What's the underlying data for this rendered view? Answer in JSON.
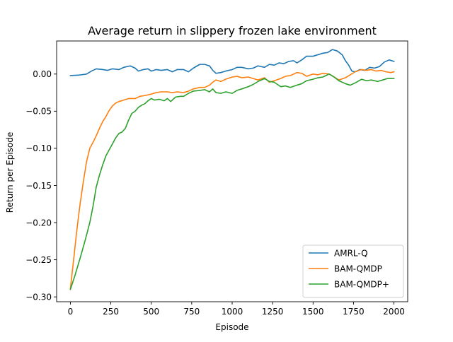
{
  "chart_data": {
    "type": "line",
    "title": "Average return in  slippery frozen lake environment",
    "xlabel": "Episode",
    "ylabel": "Return per Episode",
    "xlim": [
      -85,
      2085
    ],
    "ylim": [
      -0.3065,
      0.0445
    ],
    "xticks": [
      0,
      250,
      500,
      750,
      1000,
      1250,
      1500,
      1750,
      2000
    ],
    "xtick_labels": [
      "0",
      "250",
      "500",
      "750",
      "1000",
      "1250",
      "1500",
      "1750",
      "2000"
    ],
    "yticks": [
      0.0,
      -0.05,
      -0.1,
      -0.15,
      -0.2,
      -0.25,
      -0.3
    ],
    "ytick_labels": [
      "0.00",
      "−0.05",
      "−0.10",
      "−0.15",
      "−0.20",
      "−0.25",
      "−0.30"
    ],
    "grid": false,
    "legend_position": "lower-right",
    "series": [
      {
        "name": "AMRL-Q",
        "color": "#1f77b4",
        "points": [
          [
            0,
            -0.002
          ],
          [
            50,
            -0.0015
          ],
          [
            100,
            0.0
          ],
          [
            130,
            0.004
          ],
          [
            160,
            0.007
          ],
          [
            200,
            0.006
          ],
          [
            230,
            0.005
          ],
          [
            260,
            0.007
          ],
          [
            300,
            0.006
          ],
          [
            330,
            0.009
          ],
          [
            370,
            0.011
          ],
          [
            400,
            0.008
          ],
          [
            420,
            0.004
          ],
          [
            450,
            0.006
          ],
          [
            480,
            0.007
          ],
          [
            500,
            0.004
          ],
          [
            530,
            0.006
          ],
          [
            560,
            0.005
          ],
          [
            600,
            0.006
          ],
          [
            630,
            0.003
          ],
          [
            660,
            0.006
          ],
          [
            700,
            0.006
          ],
          [
            730,
            0.003
          ],
          [
            760,
            0.008
          ],
          [
            800,
            0.013
          ],
          [
            830,
            0.013
          ],
          [
            860,
            0.011
          ],
          [
            880,
            0.005
          ],
          [
            900,
            0.001
          ],
          [
            930,
            0.002
          ],
          [
            960,
            0.004
          ],
          [
            1000,
            0.006
          ],
          [
            1030,
            0.009
          ],
          [
            1060,
            0.009
          ],
          [
            1100,
            0.007
          ],
          [
            1130,
            0.008
          ],
          [
            1160,
            0.011
          ],
          [
            1200,
            0.009
          ],
          [
            1230,
            0.013
          ],
          [
            1260,
            0.012
          ],
          [
            1290,
            0.015
          ],
          [
            1320,
            0.014
          ],
          [
            1350,
            0.017
          ],
          [
            1380,
            0.018
          ],
          [
            1400,
            0.015
          ],
          [
            1430,
            0.019
          ],
          [
            1460,
            0.024
          ],
          [
            1500,
            0.024
          ],
          [
            1530,
            0.026
          ],
          [
            1560,
            0.028
          ],
          [
            1590,
            0.029
          ],
          [
            1620,
            0.033
          ],
          [
            1650,
            0.031
          ],
          [
            1680,
            0.026
          ],
          [
            1700,
            0.018
          ],
          [
            1720,
            0.012
          ],
          [
            1740,
            0.004
          ],
          [
            1760,
            0.003
          ],
          [
            1790,
            0.006
          ],
          [
            1820,
            0.005
          ],
          [
            1850,
            0.009
          ],
          [
            1880,
            0.008
          ],
          [
            1910,
            0.01
          ],
          [
            1940,
            0.016
          ],
          [
            1970,
            0.019
          ],
          [
            2000,
            0.017
          ]
        ]
      },
      {
        "name": "BAM-QMDP",
        "color": "#ff7f0e",
        "points": [
          [
            0,
            -0.289
          ],
          [
            20,
            -0.25
          ],
          [
            40,
            -0.21
          ],
          [
            60,
            -0.175
          ],
          [
            80,
            -0.145
          ],
          [
            100,
            -0.118
          ],
          [
            120,
            -0.1
          ],
          [
            140,
            -0.092
          ],
          [
            160,
            -0.083
          ],
          [
            180,
            -0.073
          ],
          [
            200,
            -0.064
          ],
          [
            220,
            -0.057
          ],
          [
            240,
            -0.049
          ],
          [
            260,
            -0.043
          ],
          [
            280,
            -0.039
          ],
          [
            300,
            -0.037
          ],
          [
            330,
            -0.035
          ],
          [
            360,
            -0.033
          ],
          [
            400,
            -0.033
          ],
          [
            430,
            -0.03
          ],
          [
            460,
            -0.029
          ],
          [
            500,
            -0.027
          ],
          [
            530,
            -0.025
          ],
          [
            560,
            -0.024
          ],
          [
            600,
            -0.024
          ],
          [
            630,
            -0.025
          ],
          [
            660,
            -0.024
          ],
          [
            700,
            -0.025
          ],
          [
            730,
            -0.023
          ],
          [
            760,
            -0.02
          ],
          [
            800,
            -0.018
          ],
          [
            830,
            -0.018
          ],
          [
            860,
            -0.015
          ],
          [
            880,
            -0.011
          ],
          [
            900,
            -0.008
          ],
          [
            930,
            -0.01
          ],
          [
            960,
            -0.007
          ],
          [
            1000,
            -0.004
          ],
          [
            1030,
            -0.003
          ],
          [
            1060,
            -0.005
          ],
          [
            1100,
            -0.004
          ],
          [
            1130,
            -0.006
          ],
          [
            1160,
            -0.008
          ],
          [
            1200,
            -0.005
          ],
          [
            1230,
            -0.011
          ],
          [
            1260,
            -0.009
          ],
          [
            1300,
            -0.006
          ],
          [
            1330,
            -0.003
          ],
          [
            1360,
            -0.002
          ],
          [
            1400,
            0.002
          ],
          [
            1430,
            0.001
          ],
          [
            1460,
            -0.003
          ],
          [
            1500,
            0.0
          ],
          [
            1530,
            -0.001
          ],
          [
            1560,
            0.001
          ],
          [
            1600,
            0.0
          ],
          [
            1630,
            -0.004
          ],
          [
            1660,
            -0.008
          ],
          [
            1700,
            -0.005
          ],
          [
            1730,
            -0.001
          ],
          [
            1760,
            0.003
          ],
          [
            1800,
            0.006
          ],
          [
            1830,
            0.005
          ],
          [
            1860,
            0.006
          ],
          [
            1890,
            0.004
          ],
          [
            1920,
            0.005
          ],
          [
            1950,
            0.003
          ],
          [
            1980,
            0.002
          ],
          [
            2000,
            0.003
          ]
        ]
      },
      {
        "name": "BAM-QMDP+",
        "color": "#2ca02c",
        "points": [
          [
            0,
            -0.29
          ],
          [
            30,
            -0.27
          ],
          [
            60,
            -0.248
          ],
          [
            90,
            -0.225
          ],
          [
            120,
            -0.2
          ],
          [
            140,
            -0.178
          ],
          [
            160,
            -0.152
          ],
          [
            180,
            -0.136
          ],
          [
            200,
            -0.122
          ],
          [
            220,
            -0.11
          ],
          [
            240,
            -0.102
          ],
          [
            260,
            -0.094
          ],
          [
            280,
            -0.086
          ],
          [
            300,
            -0.08
          ],
          [
            320,
            -0.078
          ],
          [
            340,
            -0.073
          ],
          [
            360,
            -0.062
          ],
          [
            380,
            -0.053
          ],
          [
            400,
            -0.05
          ],
          [
            420,
            -0.045
          ],
          [
            440,
            -0.042
          ],
          [
            460,
            -0.04
          ],
          [
            480,
            -0.036
          ],
          [
            500,
            -0.033
          ],
          [
            520,
            -0.035
          ],
          [
            550,
            -0.034
          ],
          [
            580,
            -0.036
          ],
          [
            600,
            -0.033
          ],
          [
            620,
            -0.037
          ],
          [
            650,
            -0.031
          ],
          [
            680,
            -0.03
          ],
          [
            700,
            -0.03
          ],
          [
            730,
            -0.026
          ],
          [
            760,
            -0.023
          ],
          [
            800,
            -0.022
          ],
          [
            830,
            -0.021
          ],
          [
            860,
            -0.024
          ],
          [
            880,
            -0.02
          ],
          [
            900,
            -0.025
          ],
          [
            930,
            -0.026
          ],
          [
            960,
            -0.024
          ],
          [
            1000,
            -0.026
          ],
          [
            1030,
            -0.022
          ],
          [
            1060,
            -0.02
          ],
          [
            1100,
            -0.017
          ],
          [
            1130,
            -0.014
          ],
          [
            1160,
            -0.01
          ],
          [
            1200,
            -0.006
          ],
          [
            1230,
            -0.01
          ],
          [
            1260,
            -0.011
          ],
          [
            1300,
            -0.017
          ],
          [
            1330,
            -0.016
          ],
          [
            1360,
            -0.018
          ],
          [
            1400,
            -0.015
          ],
          [
            1430,
            -0.013
          ],
          [
            1460,
            -0.009
          ],
          [
            1500,
            -0.007
          ],
          [
            1530,
            -0.005
          ],
          [
            1560,
            -0.004
          ],
          [
            1600,
            0.0
          ],
          [
            1630,
            -0.004
          ],
          [
            1660,
            -0.009
          ],
          [
            1700,
            -0.013
          ],
          [
            1730,
            -0.015
          ],
          [
            1760,
            -0.012
          ],
          [
            1800,
            -0.007
          ],
          [
            1830,
            -0.009
          ],
          [
            1860,
            -0.008
          ],
          [
            1900,
            -0.01
          ],
          [
            1930,
            -0.008
          ],
          [
            1960,
            -0.006
          ],
          [
            2000,
            -0.006
          ]
        ]
      }
    ]
  }
}
